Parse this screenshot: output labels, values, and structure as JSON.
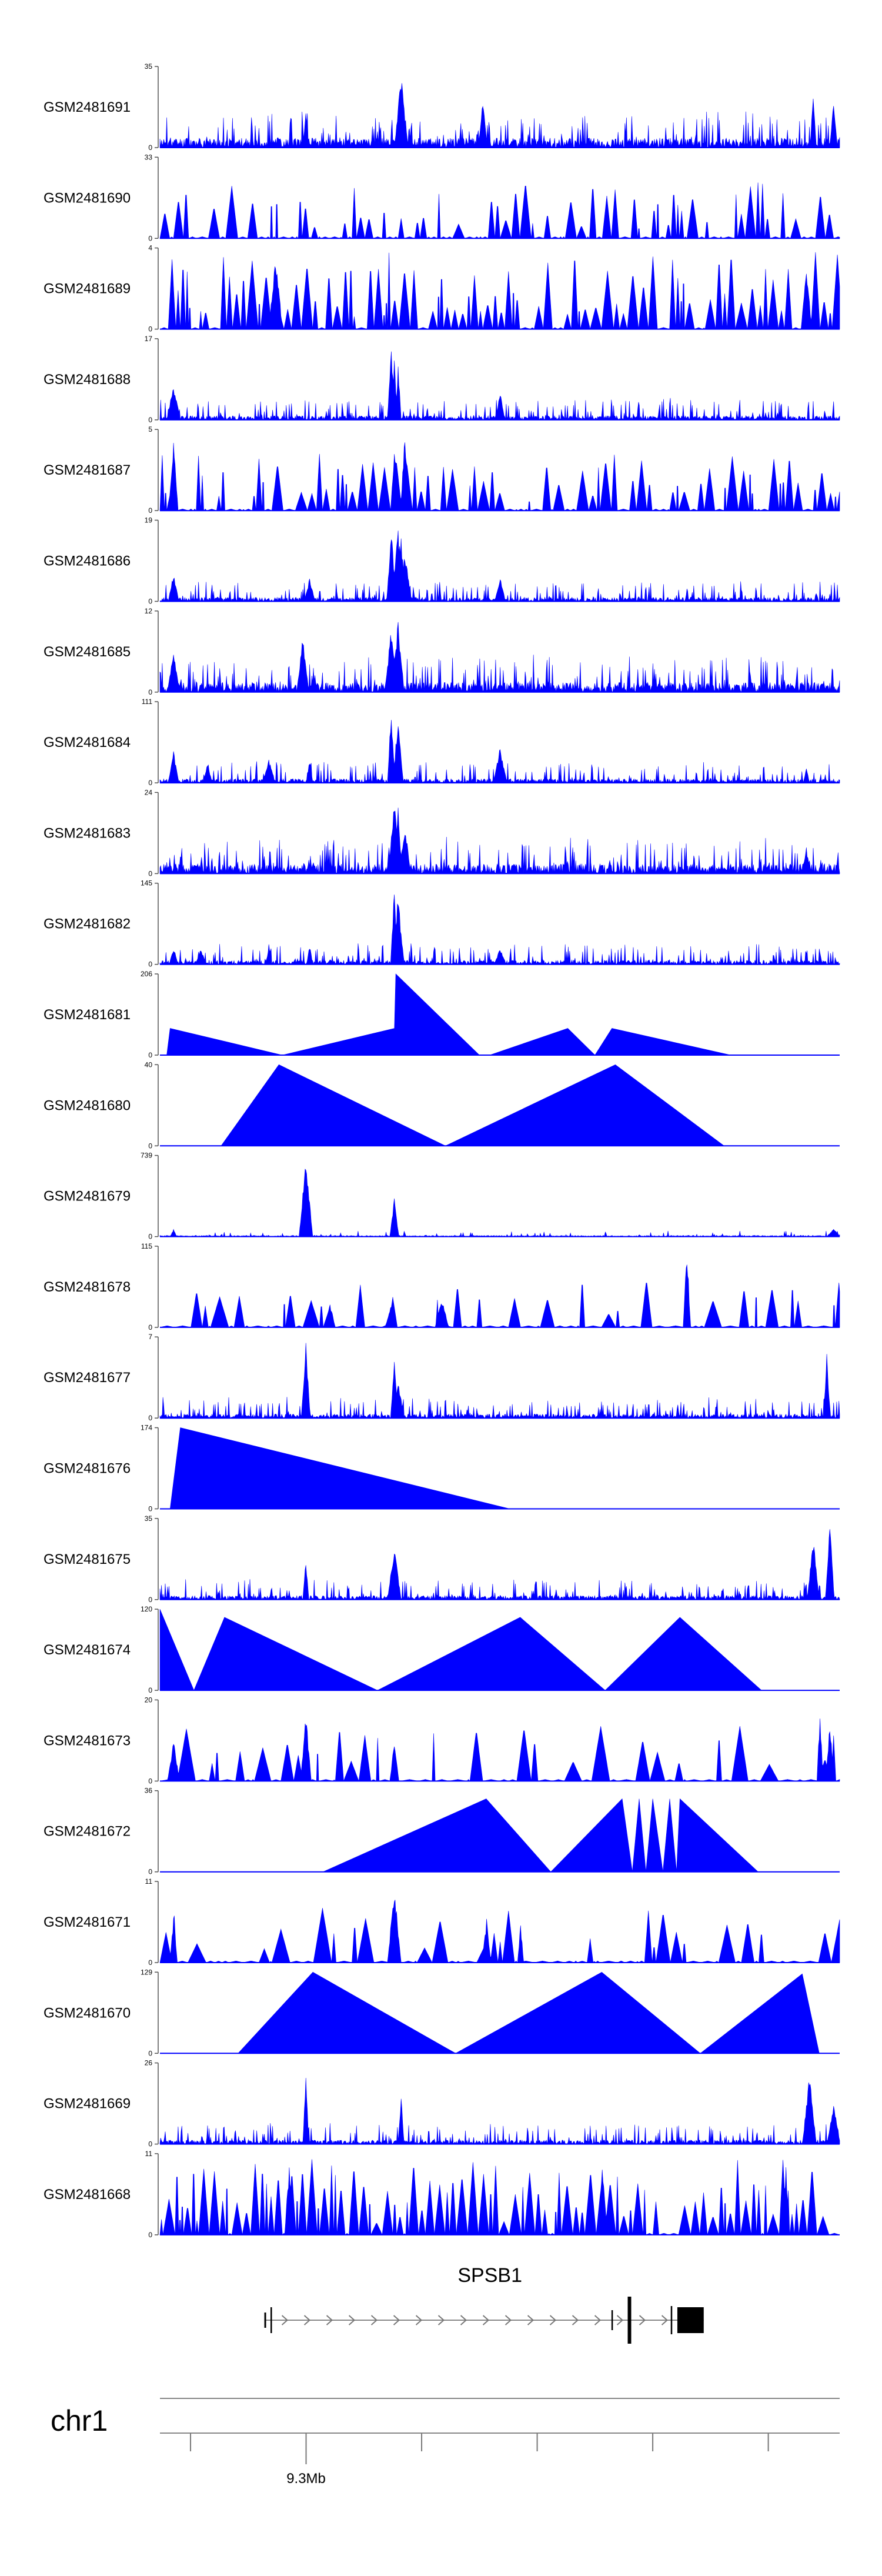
{
  "chart_data": {
    "type": "area",
    "title": "",
    "color": "#0000ff",
    "x_range": [
      9.05,
      10.45
    ],
    "x_units": "Mb",
    "tracks": [
      {
        "name": "GSM2481691",
        "ymax": "35",
        "ymin": "0",
        "profile": "dense",
        "seed": 11,
        "peaks": [
          [
            0.215,
            0.5
          ],
          [
            0.355,
            0.9
          ],
          [
            0.475,
            0.6
          ],
          [
            0.96,
            0.7
          ],
          [
            0.99,
            0.6
          ]
        ]
      },
      {
        "name": "GSM2481690",
        "ymax": "33",
        "ymin": "0",
        "profile": "tri-teeth",
        "seed": 12,
        "peaks": []
      },
      {
        "name": "GSM2481689",
        "ymax": "4",
        "ymin": "0",
        "profile": "tri-teeth-dense",
        "seed": 13,
        "peaks": [
          [
            0.17,
            0.95
          ],
          [
            0.95,
            0.8
          ]
        ]
      },
      {
        "name": "GSM2481688",
        "ymax": "17",
        "ymin": "0",
        "profile": "dense-low",
        "seed": 14,
        "peaks": [
          [
            0.34,
            0.95
          ],
          [
            0.345,
            0.8
          ],
          [
            0.35,
            0.7
          ],
          [
            0.02,
            0.45
          ],
          [
            0.5,
            0.35
          ]
        ]
      },
      {
        "name": "GSM2481687",
        "ymax": "5",
        "ymin": "0",
        "profile": "tri-teeth",
        "seed": 15,
        "peaks": [
          [
            0.02,
            0.95
          ],
          [
            0.36,
            0.95
          ],
          [
            0.345,
            0.8
          ]
        ]
      },
      {
        "name": "GSM2481686",
        "ymax": "19",
        "ymin": "0",
        "profile": "dense-low",
        "seed": 16,
        "peaks": [
          [
            0.34,
            0.95
          ],
          [
            0.35,
            0.9
          ],
          [
            0.355,
            0.8
          ],
          [
            0.36,
            0.6
          ],
          [
            0.02,
            0.35
          ],
          [
            0.22,
            0.3
          ],
          [
            0.5,
            0.3
          ]
        ]
      },
      {
        "name": "GSM2481685",
        "ymax": "12",
        "ymin": "0",
        "profile": "dense",
        "seed": 17,
        "peaks": [
          [
            0.35,
            0.9
          ],
          [
            0.21,
            0.7
          ],
          [
            0.34,
            0.8
          ],
          [
            0.02,
            0.55
          ]
        ]
      },
      {
        "name": "GSM2481684",
        "ymax": "111",
        "ymin": "0",
        "profile": "humps",
        "seed": 18,
        "peaks": [
          [
            0.34,
            0.95
          ],
          [
            0.35,
            0.85
          ],
          [
            0.5,
            0.45
          ],
          [
            0.02,
            0.4
          ],
          [
            0.07,
            0.25
          ],
          [
            0.16,
            0.3
          ],
          [
            0.22,
            0.3
          ],
          [
            0.95,
            0.2
          ]
        ]
      },
      {
        "name": "GSM2481683",
        "ymax": "24",
        "ymin": "0",
        "profile": "dense",
        "seed": 19,
        "peaks": [
          [
            0.345,
            0.95
          ],
          [
            0.35,
            0.85
          ],
          [
            0.36,
            0.6
          ],
          [
            0.95,
            0.3
          ]
        ]
      },
      {
        "name": "GSM2481682",
        "ymax": "145",
        "ymin": "0",
        "profile": "humps",
        "seed": 20,
        "peaks": [
          [
            0.345,
            0.95
          ],
          [
            0.35,
            0.85
          ],
          [
            0.16,
            0.25
          ],
          [
            0.22,
            0.25
          ],
          [
            0.5,
            0.2
          ],
          [
            0.02,
            0.2
          ],
          [
            0.06,
            0.2
          ]
        ]
      },
      {
        "name": "GSM2481681",
        "ymax": "206",
        "ymin": "0",
        "profile": "polygon",
        "seed": 21,
        "poly": [
          [
            0.01,
            0
          ],
          [
            0.015,
            0.33
          ],
          [
            0.18,
            0
          ],
          [
            0.345,
            0.33
          ],
          [
            0.347,
            1.0
          ],
          [
            0.47,
            0
          ],
          [
            0.485,
            0
          ],
          [
            0.6,
            0.33
          ],
          [
            0.64,
            0
          ],
          [
            0.665,
            0.33
          ],
          [
            0.84,
            0
          ]
        ]
      },
      {
        "name": "GSM2481680",
        "ymax": "40",
        "ymin": "0",
        "profile": "polygon",
        "seed": 22,
        "poly": [
          [
            0.09,
            0
          ],
          [
            0.175,
            1.0
          ],
          [
            0.42,
            0
          ],
          [
            0.67,
            1.0
          ],
          [
            0.83,
            0
          ]
        ]
      },
      {
        "name": "GSM2481679",
        "ymax": "739",
        "ymin": "0",
        "profile": "sparse",
        "seed": 23,
        "peaks": [
          [
            0.215,
            1.0
          ],
          [
            0.345,
            0.5
          ],
          [
            0.02,
            0.1
          ],
          [
            0.99,
            0.1
          ]
        ]
      },
      {
        "name": "GSM2481678",
        "ymax": "115",
        "ymin": "0",
        "profile": "tri-sparse",
        "seed": 24,
        "peaks": [
          [
            0.775,
            1.0
          ],
          [
            0.415,
            0.35
          ],
          [
            0.25,
            0.3
          ],
          [
            0.34,
            0.3
          ]
        ]
      },
      {
        "name": "GSM2481677",
        "ymax": "7",
        "ymin": "0",
        "profile": "dense-low",
        "seed": 25,
        "peaks": [
          [
            0.215,
            0.95
          ],
          [
            0.345,
            0.7
          ],
          [
            0.98,
            0.8
          ],
          [
            0.35,
            0.5
          ]
        ]
      },
      {
        "name": "GSM2481676",
        "ymax": "174",
        "ymin": "0",
        "profile": "polygon",
        "seed": 26,
        "poly": [
          [
            0.015,
            0
          ],
          [
            0.03,
            1.0
          ],
          [
            0.515,
            0
          ]
        ]
      },
      {
        "name": "GSM2481675",
        "ymax": "35",
        "ymin": "0",
        "profile": "dense-low",
        "seed": 27,
        "peaks": [
          [
            0.345,
            0.7
          ],
          [
            0.96,
            0.8
          ],
          [
            0.985,
            0.95
          ],
          [
            0.215,
            0.5
          ]
        ]
      },
      {
        "name": "GSM2481674",
        "ymax": "120",
        "ymin": "0",
        "profile": "polygon",
        "seed": 28,
        "poly": [
          [
            0.0,
            1.0
          ],
          [
            0.05,
            0
          ],
          [
            0.095,
            0.9
          ],
          [
            0.32,
            0
          ],
          [
            0.53,
            0.9
          ],
          [
            0.655,
            0
          ],
          [
            0.765,
            0.9
          ],
          [
            0.885,
            0
          ]
        ]
      },
      {
        "name": "GSM2481673",
        "ymax": "20",
        "ymin": "0",
        "profile": "tri-sparse",
        "seed": 29,
        "peaks": [
          [
            0.215,
            0.9
          ],
          [
            0.02,
            0.5
          ],
          [
            0.345,
            0.5
          ],
          [
            0.97,
            0.9
          ],
          [
            0.985,
            0.7
          ]
        ]
      },
      {
        "name": "GSM2481672",
        "ymax": "36",
        "ymin": "0",
        "profile": "polygon",
        "seed": 30,
        "poly": [
          [
            0.24,
            0
          ],
          [
            0.48,
            0.9
          ],
          [
            0.575,
            0
          ],
          [
            0.68,
            0.9
          ],
          [
            0.695,
            0
          ],
          [
            0.705,
            0.9
          ],
          [
            0.715,
            0
          ],
          [
            0.725,
            0.9
          ],
          [
            0.74,
            0
          ],
          [
            0.75,
            0.9
          ],
          [
            0.76,
            0
          ],
          [
            0.765,
            0.9
          ],
          [
            0.88,
            0
          ]
        ]
      },
      {
        "name": "GSM2481671",
        "ymax": "11",
        "ymin": "0",
        "profile": "tri-sparse",
        "seed": 31,
        "peaks": [
          [
            0.345,
            0.95
          ],
          [
            0.02,
            0.6
          ],
          [
            0.48,
            0.55
          ],
          [
            0.53,
            0.5
          ]
        ]
      },
      {
        "name": "GSM2481670",
        "ymax": "129",
        "ymin": "0",
        "profile": "polygon",
        "seed": 32,
        "poly": [
          [
            0.115,
            0
          ],
          [
            0.225,
            1.0
          ],
          [
            0.435,
            0
          ],
          [
            0.65,
            1.0
          ],
          [
            0.795,
            0
          ],
          [
            0.945,
            0.98
          ],
          [
            0.97,
            0
          ]
        ]
      },
      {
        "name": "GSM2481669",
        "ymax": "26",
        "ymin": "0",
        "profile": "dense-low",
        "seed": 33,
        "peaks": [
          [
            0.215,
            0.9
          ],
          [
            0.355,
            0.6
          ],
          [
            0.955,
            0.95
          ],
          [
            0.99,
            0.5
          ]
        ]
      },
      {
        "name": "GSM2481668",
        "ymax": "11",
        "ymin": "0",
        "profile": "tri-teeth-dense",
        "seed": 34,
        "peaks": [
          [
            0.65,
            0.95
          ],
          [
            0.92,
            0.85
          ],
          [
            0.19,
            0.9
          ]
        ]
      }
    ],
    "gene": {
      "name": "SPSB1",
      "strand": "+",
      "start_frac": 0.16,
      "end_frac": 0.8
    },
    "chromosome": "chr1",
    "axis_ticks": [
      {
        "pos": 0.045,
        "label": ""
      },
      {
        "pos": 0.215,
        "label": "9.3Mb"
      },
      {
        "pos": 0.385,
        "label": ""
      },
      {
        "pos": 0.555,
        "label": ""
      },
      {
        "pos": 0.725,
        "label": ""
      },
      {
        "pos": 0.895,
        "label": ""
      }
    ]
  }
}
